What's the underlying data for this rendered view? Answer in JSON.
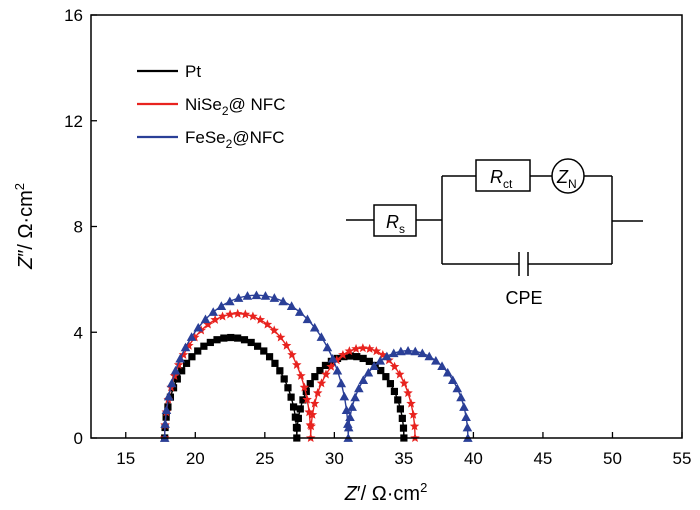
{
  "chart_data": {
    "type": "scatter",
    "xlabel": "Z′/ Ω·cm²",
    "ylabel": "Z″/ Ω·cm²",
    "xlim": [
      12.5,
      55
    ],
    "ylim": [
      0,
      16
    ],
    "xticks": [
      15,
      20,
      25,
      30,
      35,
      40,
      45,
      50,
      55
    ],
    "yticks": [
      0,
      4,
      8,
      12,
      16
    ],
    "grid": false,
    "legend_position": "top-left",
    "series": [
      {
        "name": "Pt",
        "color": "#000000",
        "marker": "square",
        "arcs": [
          {
            "r0": 17.8,
            "r1": 27.3,
            "peak": 3.8,
            "n": 30
          },
          {
            "r0": 27.3,
            "r1": 35.0,
            "peak": 3.1,
            "n": 26
          }
        ]
      },
      {
        "name": "NiSe₂@ NFC",
        "color": "#e8231f",
        "marker": "star",
        "arcs": [
          {
            "r0": 17.8,
            "r1": 28.3,
            "peak": 4.7,
            "n": 30
          },
          {
            "r0": 28.3,
            "r1": 35.8,
            "peak": 3.4,
            "n": 24
          }
        ]
      },
      {
        "name": "FeSe₂@NFC",
        "color": "#2a3f97",
        "marker": "triangle",
        "arcs": [
          {
            "r0": 17.8,
            "r1": 31.0,
            "peak": 5.4,
            "n": 32
          },
          {
            "r0": 31.0,
            "r1": 39.6,
            "peak": 3.3,
            "n": 26
          }
        ]
      }
    ],
    "legend": [
      {
        "label": "Pt",
        "base": "Pt",
        "sub": ""
      },
      {
        "label": "NiSe₂@ NFC",
        "base": "NiSe",
        "sub": "2",
        "tail": "@ NFC"
      },
      {
        "label": "FeSe₂@NFC",
        "base": "FeSe",
        "sub": "2",
        "tail": "@NFC"
      }
    ],
    "circuit": {
      "rs": {
        "base": "R",
        "sub": "s"
      },
      "rct": {
        "base": "R",
        "sub": "ct"
      },
      "zn": {
        "base": "Z",
        "sub": "N"
      },
      "cpe": "CPE"
    }
  }
}
